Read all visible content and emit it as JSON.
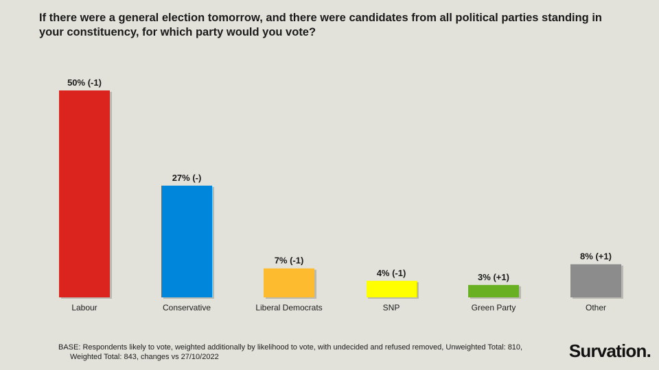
{
  "title": "If there were a general election tomorrow, and there were candidates from all political parties standing in your constituency, for which party would you vote?",
  "footnote": {
    "line1": "BASE: Respondents likely to vote, weighted additionally by likelihood to vote, with undecided and refused removed, Unweighted Total: 810,",
    "line2": "Weighted Total: 843, changes vs 27/10/2022"
  },
  "brand": "Survation.",
  "chart_data": {
    "type": "bar",
    "title": "If there were a general election tomorrow, and there were candidates from all political parties standing in your constituency, for which party would you vote?",
    "categories": [
      "Labour",
      "Conservative",
      "Liberal Democrats",
      "SNP",
      "Green Party",
      "Other"
    ],
    "values": [
      50,
      27,
      7,
      4,
      3,
      8
    ],
    "data_labels": [
      "50% (-1)",
      "27% (-)",
      "7% (-1)",
      "4% (-1)",
      "3% (+1)",
      "8% (+1)"
    ],
    "colors": [
      "#dc241f",
      "#0087dc",
      "#fdbb30",
      "#ffff00",
      "#6ab023",
      "#8c8c8c"
    ],
    "ylim": [
      0,
      50
    ],
    "grid": false,
    "legend": "none"
  }
}
